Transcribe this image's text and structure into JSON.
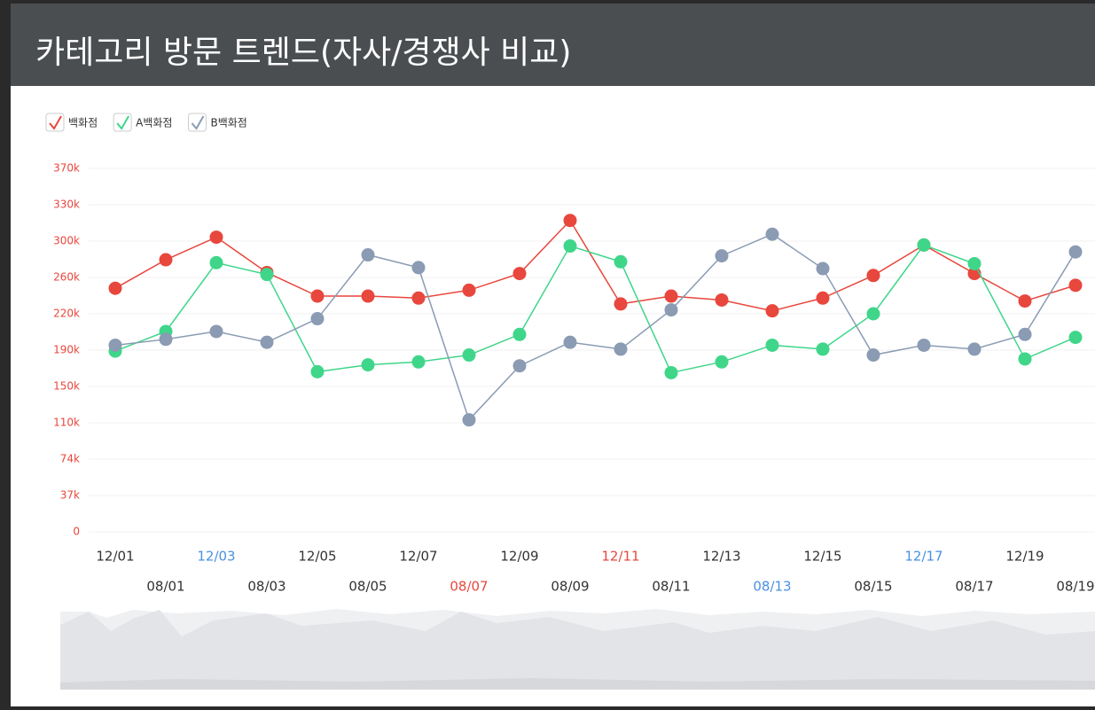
{
  "header": {
    "title": "카테고리 방문 트렌드(자사/경쟁사 비교)"
  },
  "chart_data": {
    "type": "line",
    "categories": [
      "12/01",
      null,
      "12/03",
      null,
      "12/05",
      null,
      "12/07",
      null,
      "12/09",
      null,
      "12/11",
      null,
      "12/13",
      null,
      "12/15",
      null,
      "12/17",
      null,
      "12/19",
      null
    ],
    "category_colors": [
      null,
      null,
      "#4a90e2",
      null,
      null,
      null,
      null,
      null,
      null,
      null,
      "#e8473d",
      null,
      null,
      null,
      null,
      null,
      "#4a90e2",
      null,
      null,
      null
    ],
    "compare_categories": [
      null,
      "08/01",
      null,
      "08/03",
      null,
      "08/05",
      null,
      "08/07",
      null,
      "08/09",
      null,
      "08/11",
      null,
      "08/13",
      null,
      "08/15",
      null,
      "08/17",
      null,
      "08/19"
    ],
    "compare_category_colors": [
      null,
      null,
      null,
      null,
      null,
      null,
      null,
      "#e8473d",
      null,
      null,
      null,
      null,
      null,
      "#4a90e2",
      null,
      null,
      null,
      null,
      null,
      null
    ],
    "series": [
      {
        "name": "백화점",
        "color": "#e8473d",
        "values": [
          248000,
          277000,
          300000,
          264000,
          240000,
          240000,
          238000,
          246000,
          263000,
          317000,
          232000,
          240000,
          236000,
          225000,
          238000,
          261000,
          292000,
          263000,
          235000,
          251000
        ]
      },
      {
        "name": "A백화점",
        "color": "#3fd68a",
        "values": [
          184000,
          204000,
          274000,
          262000,
          163000,
          170000,
          173000,
          180000,
          201000,
          291000,
          275000,
          162000,
          173000,
          190000,
          186000,
          222000,
          292000,
          273000,
          176000,
          198000
        ]
      },
      {
        "name": "B백화점",
        "color": "#8a9bb3",
        "values": [
          190000,
          196000,
          204000,
          193000,
          217000,
          282000,
          269000,
          114000,
          169000,
          193000,
          186000,
          226000,
          281000,
          303000,
          268000,
          180000,
          190000,
          186000,
          201000,
          285000
        ]
      }
    ],
    "ylim": [
      0,
      370000
    ],
    "yticks": [
      0,
      {
        "value": 37000,
        "label": "37k"
      },
      {
        "value": 74000,
        "label": "74k"
      },
      {
        "value": 111000,
        "label": "110k"
      },
      {
        "value": 148000,
        "label": "150k"
      },
      {
        "value": 185000,
        "label": "190k"
      },
      {
        "value": 222000,
        "label": "220k"
      },
      {
        "value": 259000,
        "label": "260k"
      },
      {
        "value": 296000,
        "label": "300k"
      },
      {
        "value": 333000,
        "label": "330k"
      },
      {
        "value": 370000,
        "label": "370k"
      }
    ],
    "ytick_color": "#e8473d",
    "grid": true
  }
}
